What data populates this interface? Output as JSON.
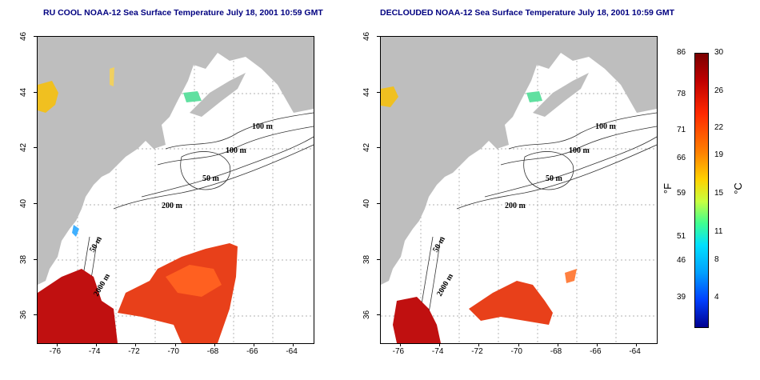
{
  "titles": {
    "left": "RU COOL NOAA-12 Sea Surface Temperature July 18, 2001 10:59 GMT",
    "right": "DECLOUDED NOAA-12 Sea Surface Temperature July 18, 2001 10:59 GMT"
  },
  "axes": {
    "x_ticks": [
      "-76",
      "-74",
      "-72",
      "-70",
      "-68",
      "-66",
      "-64"
    ],
    "x_values": [
      -76,
      -74,
      -72,
      -70,
      -68,
      -66,
      -64
    ],
    "x_range": [
      -77,
      -63
    ],
    "y_ticks": [
      "36",
      "38",
      "40",
      "42",
      "44",
      "46"
    ],
    "y_values": [
      36,
      38,
      40,
      42,
      44,
      46
    ],
    "y_range": [
      35,
      46
    ]
  },
  "contour_labels": {
    "left": [
      "100 m",
      "100 m",
      "50 m",
      "200 m",
      "50 m",
      "2000 m"
    ],
    "right": [
      "100 m",
      "100 m",
      "50 m",
      "200 m",
      "50 m",
      "2000 m"
    ]
  },
  "colorbar": {
    "fahrenheit_labels": [
      "86",
      "78",
      "71",
      "66",
      "59",
      "51",
      "46",
      "39"
    ],
    "celsius_labels": [
      "30",
      "26",
      "22",
      "19",
      "15",
      "11",
      "8",
      "4"
    ],
    "fahrenheit_unit": "°F",
    "celsius_unit": "°C"
  },
  "colors": {
    "land": "#bebebe",
    "ocean": "#ffffff",
    "title": "#000080",
    "warm": "#e8401a",
    "hot": "#c01010"
  }
}
